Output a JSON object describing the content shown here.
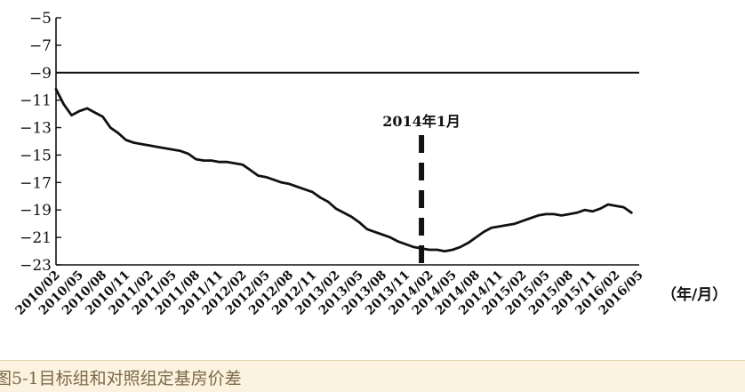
{
  "chart_data": {
    "type": "line",
    "title": "",
    "xlabel": "（年/月）",
    "ylabel": "",
    "ylim": [
      -23,
      -5
    ],
    "yticks": [
      -5,
      -7,
      -9,
      -11,
      -13,
      -15,
      -17,
      -19,
      -21,
      -23
    ],
    "grid": false,
    "x_tick_labels": [
      "2010/02",
      "2010/05",
      "2010/08",
      "2010/11",
      "2011/02",
      "2011/05",
      "2011/08",
      "2011/11",
      "2012/02",
      "2012/05",
      "2012/08",
      "2012/11",
      "2013/02",
      "2013/05",
      "2013/08",
      "2013/11",
      "2014/02",
      "2014/05",
      "2014/08",
      "2014/11",
      "2015/02",
      "2015/05",
      "2015/08",
      "2015/11",
      "2016/02",
      "2016/05"
    ],
    "reference_line": {
      "y": -9
    },
    "annotation": {
      "label": "2014年1月",
      "x": "2014/01"
    },
    "series": [
      {
        "x": [
          "2010/02",
          "2010/03",
          "2010/04",
          "2010/05",
          "2010/06",
          "2010/07",
          "2010/08",
          "2010/09",
          "2010/10",
          "2010/11",
          "2010/12",
          "2011/01",
          "2011/02",
          "2011/03",
          "2011/04",
          "2011/05",
          "2011/06",
          "2011/07",
          "2011/08",
          "2011/09",
          "2011/10",
          "2011/11",
          "2011/12",
          "2012/01",
          "2012/02",
          "2012/03",
          "2012/04",
          "2012/05",
          "2012/06",
          "2012/07",
          "2012/08",
          "2012/09",
          "2012/10",
          "2012/11",
          "2012/12",
          "2013/01",
          "2013/02",
          "2013/03",
          "2013/04",
          "2013/05",
          "2013/06",
          "2013/07",
          "2013/08",
          "2013/09",
          "2013/10",
          "2013/11",
          "2013/12",
          "2014/01",
          "2014/02",
          "2014/03",
          "2014/04",
          "2014/05",
          "2014/06",
          "2014/07",
          "2014/08",
          "2014/09",
          "2014/10",
          "2014/11",
          "2014/12",
          "2015/01",
          "2015/02",
          "2015/03",
          "2015/04",
          "2015/05",
          "2015/06",
          "2015/07",
          "2015/08",
          "2015/09",
          "2015/10",
          "2015/11",
          "2015/12",
          "2016/01",
          "2016/02",
          "2016/03",
          "2016/04"
        ],
        "values": [
          -10.2,
          -11.3,
          -12.1,
          -11.8,
          -11.6,
          -11.9,
          -12.2,
          -13.0,
          -13.4,
          -13.9,
          -14.1,
          -14.2,
          -14.3,
          -14.4,
          -14.5,
          -14.6,
          -14.7,
          -14.9,
          -15.3,
          -15.4,
          -15.4,
          -15.5,
          -15.5,
          -15.6,
          -15.7,
          -16.1,
          -16.5,
          -16.6,
          -16.8,
          -17.0,
          -17.1,
          -17.3,
          -17.5,
          -17.7,
          -18.1,
          -18.4,
          -18.9,
          -19.2,
          -19.5,
          -19.9,
          -20.4,
          -20.6,
          -20.8,
          -21.0,
          -21.3,
          -21.5,
          -21.7,
          -21.8,
          -21.9,
          -21.9,
          -22.0,
          -21.9,
          -21.7,
          -21.4,
          -21.0,
          -20.6,
          -20.3,
          -20.2,
          -20.1,
          -20.0,
          -19.8,
          -19.6,
          -19.4,
          -19.3,
          -19.3,
          -19.4,
          -19.3,
          -19.2,
          -19.0,
          -19.1,
          -18.9,
          -18.6,
          -18.7,
          -18.8,
          -19.2
        ]
      }
    ]
  },
  "caption": "图5-1目标组和对照组定基房价差"
}
